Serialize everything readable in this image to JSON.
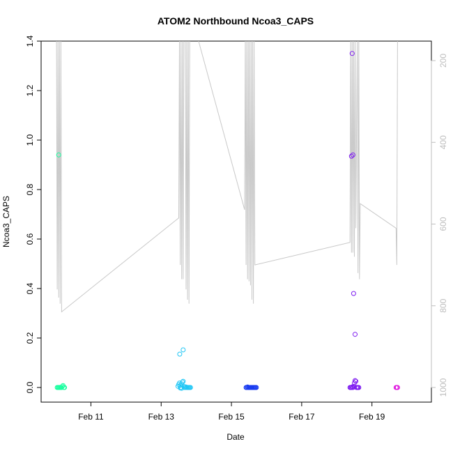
{
  "chart_data": {
    "type": "scatter",
    "title": "ATOM2 Northbound Ncoa3_CAPS",
    "xlabel": "Date",
    "ylabel": "Ncoa3_CAPS",
    "xlim": [
      "2020-02-09 21:36",
      "2020-02-20 09:00"
    ],
    "ylim": [
      -0.05,
      1.4
    ],
    "x_ticks": [
      "Feb 11",
      "Feb 13",
      "Feb 15",
      "Feb 17",
      "Feb 19"
    ],
    "x_tick_dates": [
      "2020-02-11",
      "2020-02-13",
      "2020-02-15",
      "2020-02-17",
      "2020-02-19"
    ],
    "y_ticks": [
      0.0,
      0.2,
      0.4,
      0.6,
      0.8,
      1.0,
      1.2,
      1.4
    ],
    "y_tick_labels": [
      "0.0",
      "0.2",
      "0.4",
      "0.6",
      "0.8",
      "1.0",
      "1.2",
      "1.4"
    ],
    "y2_ticks": [
      200,
      400,
      600,
      800,
      1000
    ],
    "y2_lim": [
      1005,
      135
    ],
    "y2_reversed": true,
    "grid": false,
    "colors": {
      "group1": "#1affa0",
      "group2": "#22c7f5",
      "group3": "#1a3cf0",
      "group4": "#7d1af0",
      "group5": "#e01ae0",
      "depth_line": "#c8c8c8",
      "secondary_axis": "#bdbdbd"
    },
    "series": [
      {
        "color_key": "group1",
        "points": [
          [
            "2020-02-10 02:00",
            0.94
          ],
          [
            "2020-02-10 01:00",
            0.0
          ],
          [
            "2020-02-10 01:30",
            0.0
          ],
          [
            "2020-02-10 02:00",
            0.0
          ],
          [
            "2020-02-10 02:30",
            0.0
          ],
          [
            "2020-02-10 03:00",
            0.0
          ],
          [
            "2020-02-10 03:30",
            0.0
          ],
          [
            "2020-02-10 04:00",
            0.0
          ],
          [
            "2020-02-10 04:30",
            0.005
          ],
          [
            "2020-02-10 05:00",
            0.008
          ],
          [
            "2020-02-10 05:30",
            0.0
          ],
          [
            "2020-02-10 06:00",
            0.0
          ]
        ]
      },
      {
        "color_key": "group2",
        "points": [
          [
            "2020-02-13 12:40",
            0.135
          ],
          [
            "2020-02-13 15:00",
            0.152
          ],
          [
            "2020-02-13 11:30",
            0.005
          ],
          [
            "2020-02-13 12:00",
            0.012
          ],
          [
            "2020-02-13 12:30",
            0.018
          ],
          [
            "2020-02-13 13:00",
            0.008
          ],
          [
            "2020-02-13 13:30",
            0.0
          ],
          [
            "2020-02-13 14:00",
            0.015
          ],
          [
            "2020-02-13 14:30",
            0.022
          ],
          [
            "2020-02-13 15:00",
            0.025
          ],
          [
            "2020-02-13 15:30",
            0.005
          ],
          [
            "2020-02-13 16:00",
            0.0
          ],
          [
            "2020-02-13 16:30",
            0.0
          ],
          [
            "2020-02-13 17:00",
            0.002
          ],
          [
            "2020-02-13 17:30",
            0.0
          ],
          [
            "2020-02-13 18:00",
            0.0
          ],
          [
            "2020-02-13 18:30",
            0.0
          ],
          [
            "2020-02-13 19:00",
            0.0
          ],
          [
            "2020-02-13 19:30",
            0.0
          ],
          [
            "2020-02-13 20:00",
            0.0
          ],
          [
            "2020-02-13 13:00",
            -0.002
          ],
          [
            "2020-02-13 14:00",
            -0.003
          ]
        ]
      },
      {
        "color_key": "group3",
        "points": [
          [
            "2020-02-15 10:00",
            0.0
          ],
          [
            "2020-02-15 10:30",
            0.0
          ],
          [
            "2020-02-15 11:00",
            0.002
          ],
          [
            "2020-02-15 11:30",
            0.0
          ],
          [
            "2020-02-15 12:00",
            0.0
          ],
          [
            "2020-02-15 12:30",
            0.0
          ],
          [
            "2020-02-15 13:00",
            0.0
          ],
          [
            "2020-02-15 13:30",
            0.0
          ],
          [
            "2020-02-15 14:00",
            0.0
          ],
          [
            "2020-02-15 14:30",
            0.0
          ],
          [
            "2020-02-15 15:00",
            0.0
          ],
          [
            "2020-02-15 15:30",
            0.0
          ],
          [
            "2020-02-15 16:00",
            0.0
          ],
          [
            "2020-02-15 16:30",
            0.0
          ],
          [
            "2020-02-15 17:00",
            0.0
          ]
        ]
      },
      {
        "color_key": "group4",
        "points": [
          [
            "2020-02-18 10:30",
            1.35
          ],
          [
            "2020-02-18 10:00",
            0.935
          ],
          [
            "2020-02-18 11:00",
            0.94
          ],
          [
            "2020-02-18 11:30",
            0.38
          ],
          [
            "2020-02-18 12:30",
            0.215
          ],
          [
            "2020-02-18 09:00",
            0.0
          ],
          [
            "2020-02-18 09:30",
            0.0
          ],
          [
            "2020-02-18 10:00",
            0.0
          ],
          [
            "2020-02-18 10:30",
            0.002
          ],
          [
            "2020-02-18 11:00",
            0.0
          ],
          [
            "2020-02-18 11:30",
            0.005
          ],
          [
            "2020-02-18 12:00",
            0.018
          ],
          [
            "2020-02-18 12:30",
            0.028
          ],
          [
            "2020-02-18 13:00",
            0.025
          ],
          [
            "2020-02-18 13:30",
            0.0
          ],
          [
            "2020-02-18 14:00",
            0.0
          ],
          [
            "2020-02-18 14:30",
            0.0
          ],
          [
            "2020-02-18 15:00",
            0.0
          ]
        ]
      },
      {
        "color_key": "group5",
        "points": [
          [
            "2020-02-19 16:30",
            0.0
          ],
          [
            "2020-02-19 17:00",
            0.0
          ],
          [
            "2020-02-19 17:30",
            0.0
          ]
        ]
      }
    ],
    "depth_line": {
      "axis": "right",
      "color_key": "depth_line",
      "points": [
        [
          "2020-02-10 00:30",
          145
        ],
        [
          "2020-02-10 01:00",
          760
        ],
        [
          "2020-02-10 01:30",
          145
        ],
        [
          "2020-02-10 02:00",
          780
        ],
        [
          "2020-02-10 02:30",
          145
        ],
        [
          "2020-02-10 03:00",
          795
        ],
        [
          "2020-02-10 03:30",
          145
        ],
        [
          "2020-02-10 04:00",
          815
        ],
        [
          "2020-02-13 12:00",
          585
        ],
        [
          "2020-02-13 12:30",
          145
        ],
        [
          "2020-02-13 13:00",
          700
        ],
        [
          "2020-02-13 13:30",
          145
        ],
        [
          "2020-02-13 14:00",
          735
        ],
        [
          "2020-02-13 14:30",
          145
        ],
        [
          "2020-02-13 15:00",
          735
        ],
        [
          "2020-02-13 15:30",
          145
        ],
        [
          "2020-02-13 16:30",
          145
        ],
        [
          "2020-02-13 17:00",
          760
        ],
        [
          "2020-02-13 17:30",
          145
        ],
        [
          "2020-02-13 18:00",
          785
        ],
        [
          "2020-02-13 18:30",
          145
        ],
        [
          "2020-02-13 19:00",
          795
        ],
        [
          "2020-02-13 19:30",
          145
        ],
        [
          "2020-02-14 01:00",
          145
        ],
        [
          "2020-02-15 09:00",
          565
        ],
        [
          "2020-02-15 09:30",
          145
        ],
        [
          "2020-02-15 10:00",
          700
        ],
        [
          "2020-02-15 10:30",
          145
        ],
        [
          "2020-02-15 11:00",
          735
        ],
        [
          "2020-02-15 11:30",
          145
        ],
        [
          "2020-02-15 12:00",
          740
        ],
        [
          "2020-02-15 12:30",
          145
        ],
        [
          "2020-02-15 13:00",
          750
        ],
        [
          "2020-02-15 13:30",
          145
        ],
        [
          "2020-02-15 14:00",
          785
        ],
        [
          "2020-02-15 14:30",
          145
        ],
        [
          "2020-02-15 15:00",
          795
        ],
        [
          "2020-02-15 15:30",
          145
        ],
        [
          "2020-02-15 16:00",
          700
        ],
        [
          "2020-02-18 09:00",
          645
        ],
        [
          "2020-02-18 09:30",
          145
        ],
        [
          "2020-02-18 10:00",
          670
        ],
        [
          "2020-02-18 10:30",
          145
        ],
        [
          "2020-02-18 11:00",
          670
        ],
        [
          "2020-02-18 11:30",
          145
        ],
        [
          "2020-02-18 12:00",
          680
        ],
        [
          "2020-02-18 12:30",
          145
        ],
        [
          "2020-02-18 13:00",
          610
        ],
        [
          "2020-02-18 13:30",
          375
        ],
        [
          "2020-02-18 14:00",
          145
        ],
        [
          "2020-02-18 14:30",
          720
        ],
        [
          "2020-02-18 15:00",
          135
        ],
        [
          "2020-02-18 15:30",
          735
        ],
        [
          "2020-02-18 16:00",
          550
        ],
        [
          "2020-02-19 16:30",
          610
        ],
        [
          "2020-02-19 17:00",
          700
        ],
        [
          "2020-02-19 17:30",
          145
        ]
      ]
    }
  }
}
